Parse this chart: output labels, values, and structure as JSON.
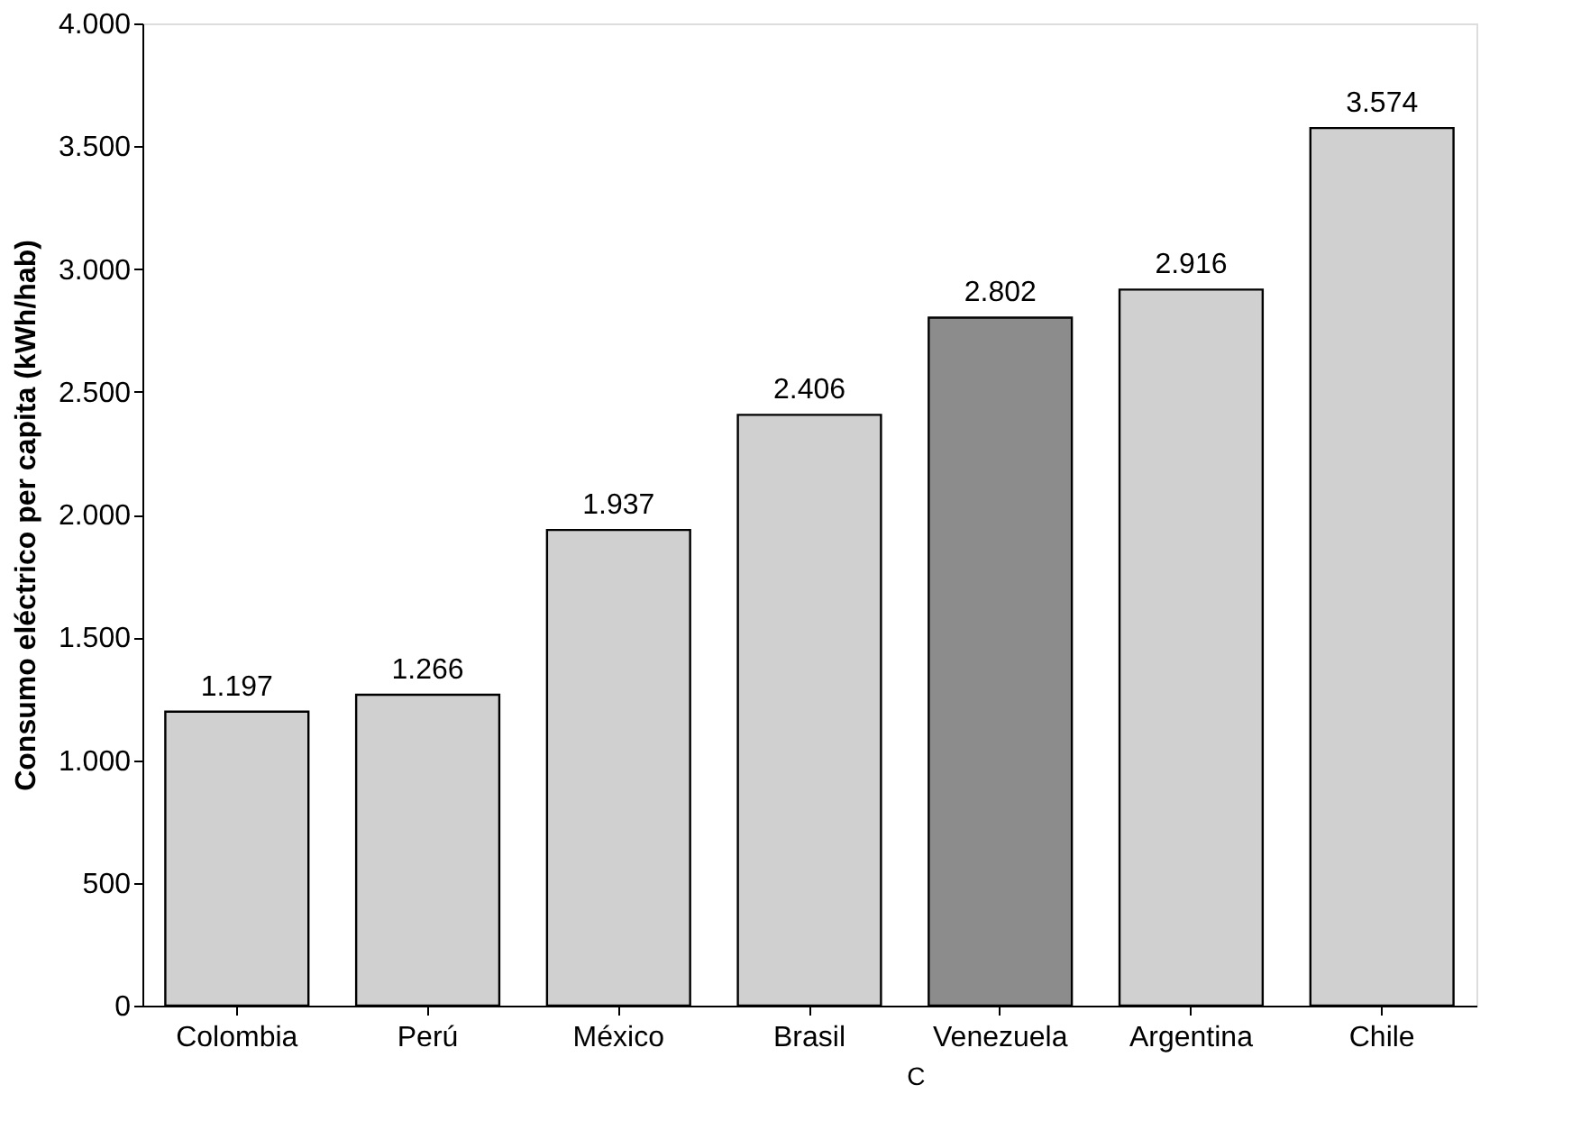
{
  "chart_data": {
    "type": "bar",
    "ylabel": "Consumo eléctrico per capita (kWh/hab)",
    "categories": [
      "Colombia",
      "Perú",
      "México",
      "Brasil",
      "Venezuela",
      "Argentina",
      "Chile"
    ],
    "values": [
      1197,
      1266,
      1937,
      2406,
      2802,
      2916,
      3574
    ],
    "value_labels": [
      "1.197",
      "1.266",
      "1.937",
      "2.406",
      "2.802",
      "2.916",
      "3.574"
    ],
    "colors": [
      "#d0d0d0",
      "#d0d0d0",
      "#d0d0d0",
      "#d0d0d0",
      "#8c8c8c",
      "#d0d0d0",
      "#d0d0d0"
    ],
    "ylim": [
      0,
      4000
    ],
    "yticks": [
      0,
      500,
      {
        "value": 1000,
        "label": "1.000"
      },
      {
        "value": 1500,
        "label": "1.500"
      },
      {
        "value": 2000,
        "label": "2.000"
      },
      {
        "value": 2500,
        "label": "2.500"
      },
      {
        "value": 3000,
        "label": "3.000"
      },
      {
        "value": 3500,
        "label": "3.500"
      },
      {
        "value": 4000,
        "label": "4.000"
      }
    ],
    "grid": false,
    "annotations": [
      "C"
    ]
  }
}
